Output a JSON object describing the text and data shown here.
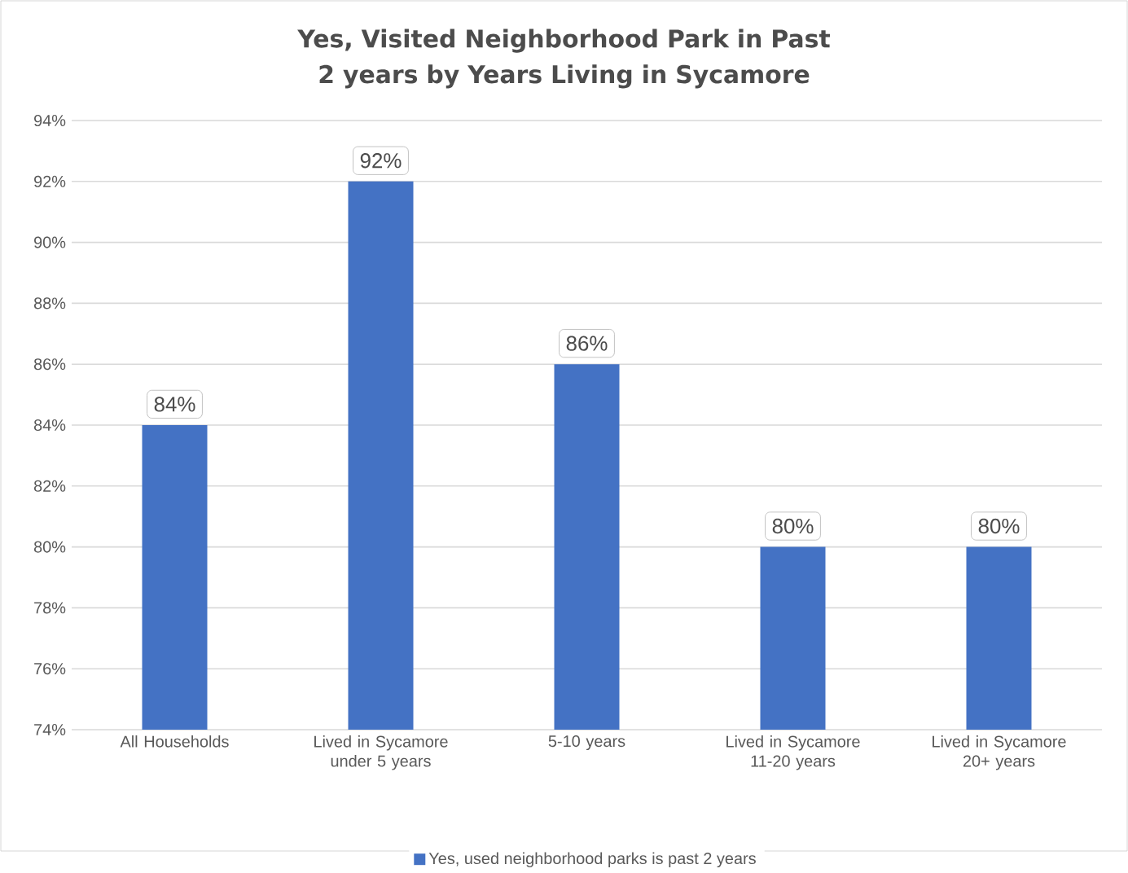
{
  "chart_data": {
    "type": "bar",
    "title": "Yes, Visited Neighborhood Park in Past 2 years by Years Living in Sycamore",
    "categories": [
      "All Households",
      "Lived in Sycamore under 5 years",
      "5-10 years",
      "Lived in Sycamore 11-20 years",
      "Lived in Sycamore 20+ years"
    ],
    "series": [
      {
        "name": "Yes, used neighborhood parks is past 2 years",
        "color": "#4472c4",
        "values": [
          84,
          92,
          86,
          80,
          80
        ],
        "value_labels": [
          "84%",
          "92%",
          "86%",
          "80%",
          "80%"
        ]
      }
    ],
    "ylim": [
      74,
      94
    ],
    "yticks": [
      {
        "value": 74,
        "label": "74%"
      },
      {
        "value": 76,
        "label": "76%"
      },
      {
        "value": 78,
        "label": "78%"
      },
      {
        "value": 80,
        "label": "80%"
      },
      {
        "value": 82,
        "label": "82%"
      },
      {
        "value": 84,
        "label": "84%"
      },
      {
        "value": 86,
        "label": "86%"
      },
      {
        "value": 88,
        "label": "88%"
      },
      {
        "value": 90,
        "label": "90%"
      },
      {
        "value": 92,
        "label": "92%"
      },
      {
        "value": 94,
        "label": "94%"
      }
    ],
    "grid": "y",
    "legend": "bottom"
  }
}
